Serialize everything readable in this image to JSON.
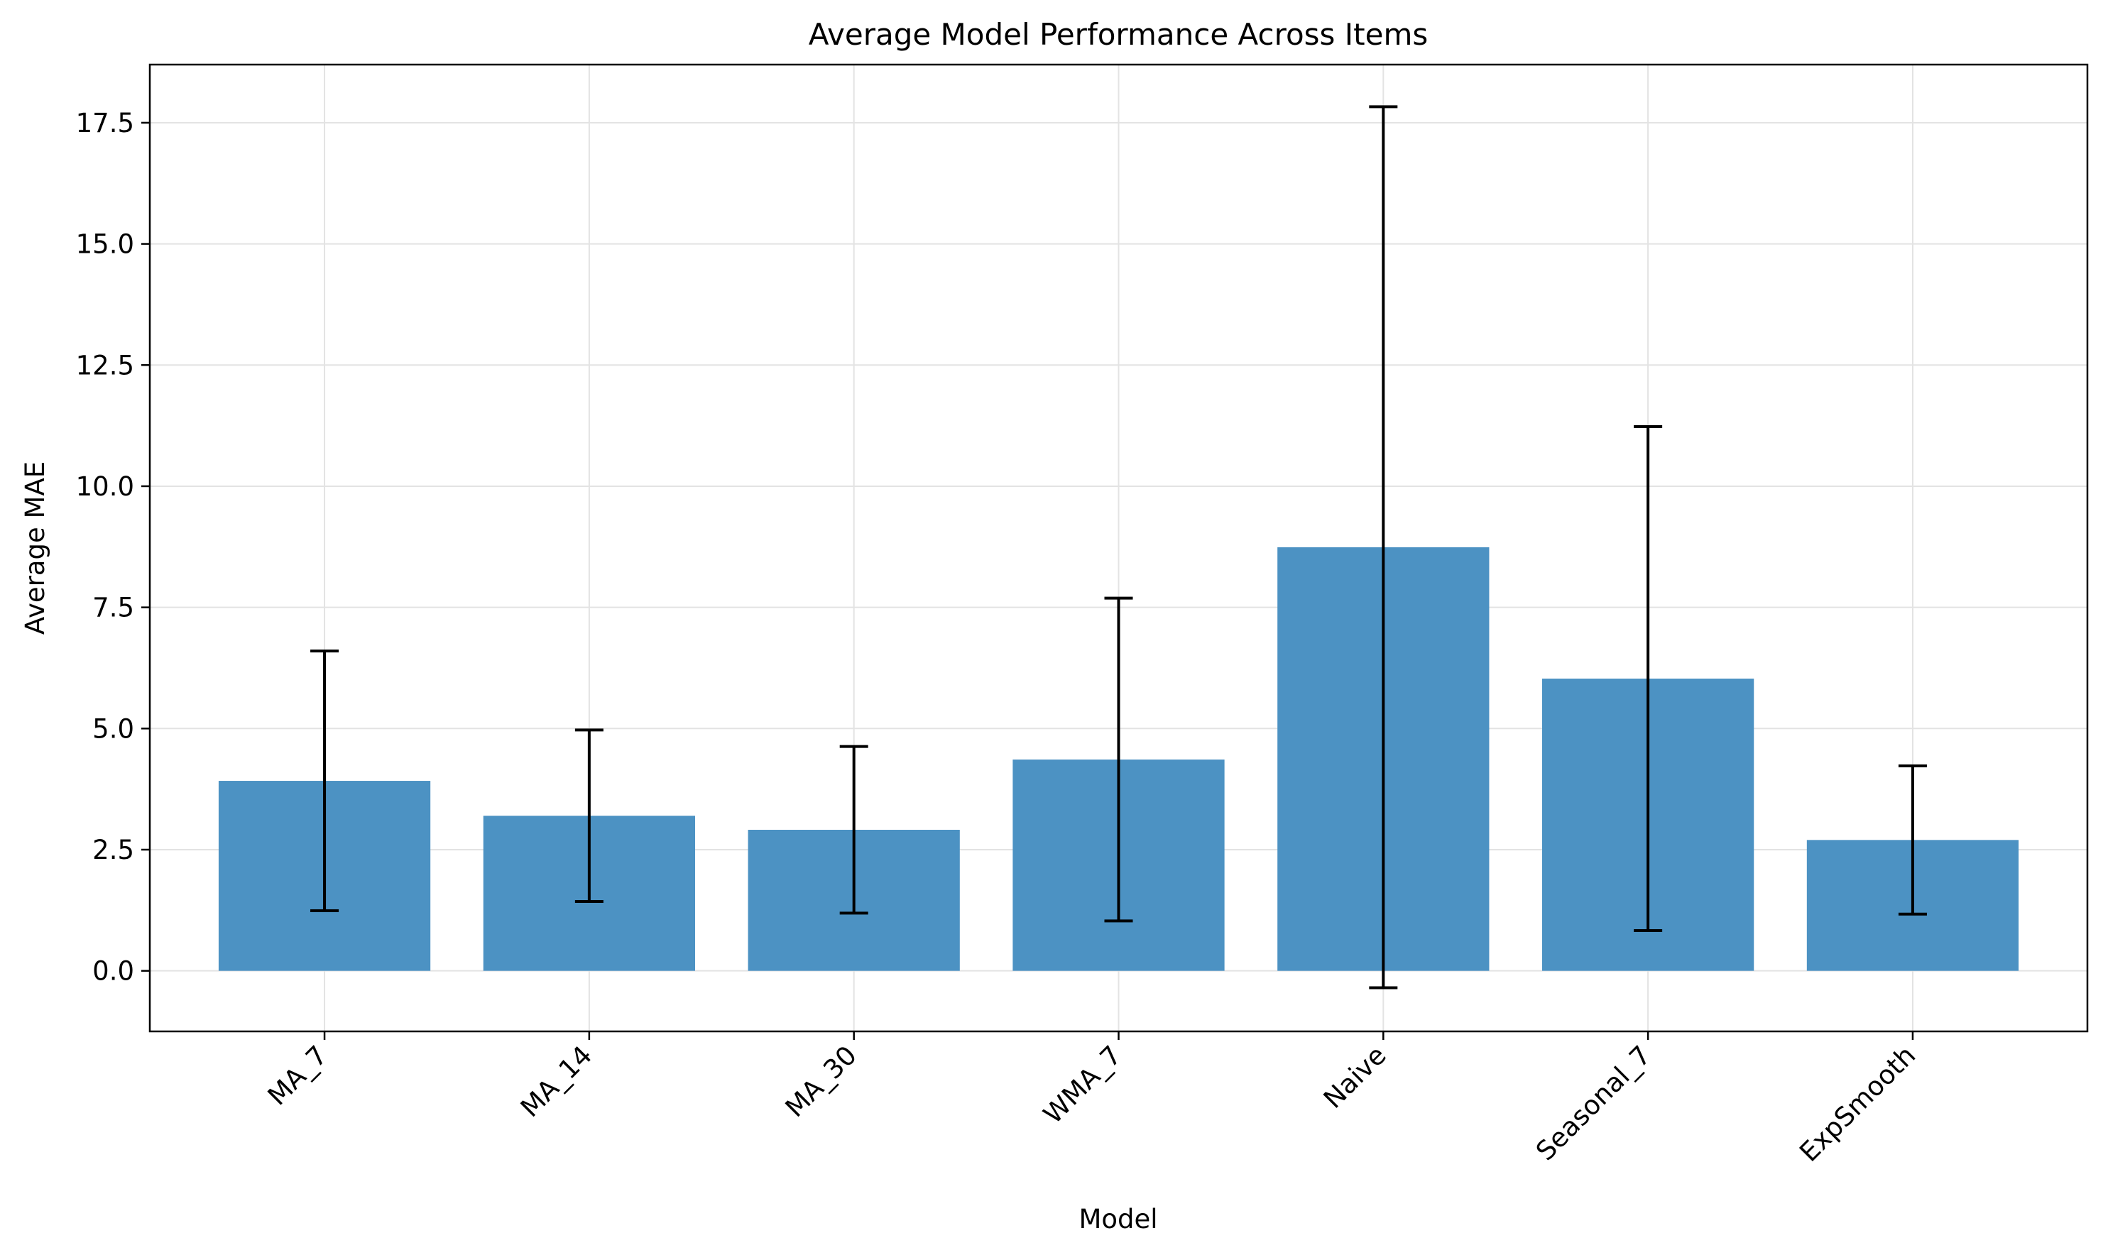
{
  "chart_data": {
    "type": "bar",
    "title": "Average Model Performance Across Items",
    "xlabel": "Model",
    "ylabel": "Average MAE",
    "categories": [
      "MA_7",
      "MA_14",
      "MA_30",
      "WMA_7",
      "Naive",
      "Seasonal_7",
      "ExpSmooth"
    ],
    "values": [
      3.92,
      3.2,
      2.91,
      4.36,
      8.74,
      6.03,
      2.7
    ],
    "error": [
      2.68,
      1.77,
      1.72,
      3.33,
      9.09,
      5.2,
      1.53
    ],
    "ylim": [
      -1.25,
      18.7
    ],
    "yticks": [
      "0.0",
      "2.5",
      "5.0",
      "7.5",
      "10.0",
      "12.5",
      "15.0",
      "17.5"
    ],
    "grid": true,
    "bar_color": "#4c92c3",
    "error_color": "#000000"
  }
}
